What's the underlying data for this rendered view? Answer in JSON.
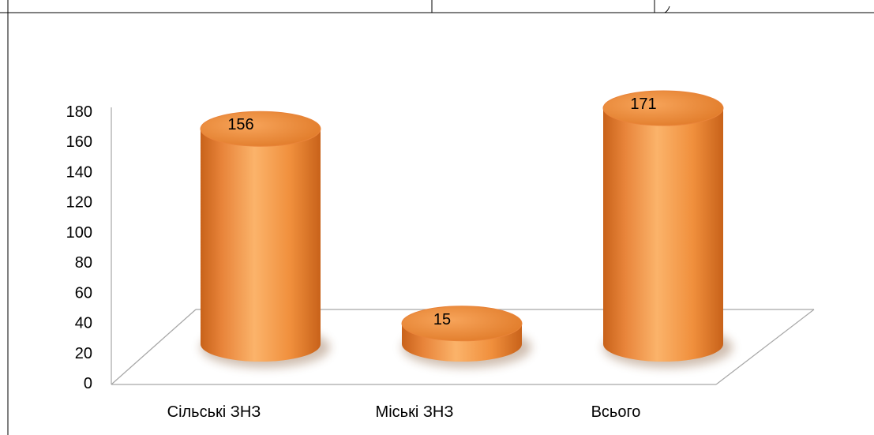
{
  "chart_data": {
    "type": "bar",
    "style": "3d-cylinder",
    "title": "",
    "xlabel": "",
    "ylabel": "",
    "categories": [
      "Сільські ЗНЗ",
      "Міські ЗНЗ",
      "Всього"
    ],
    "values": [
      156,
      15,
      171
    ],
    "data_labels": [
      "156",
      "15",
      "171"
    ],
    "ylim": [
      0,
      180
    ],
    "yticks": [
      "0",
      "20",
      "40",
      "60",
      "80",
      "100",
      "120",
      "140",
      "160",
      "180"
    ],
    "grid": false,
    "legend": "none",
    "colors": {
      "bar_light": "#fbb36a",
      "bar_mid": "#f59a42",
      "bar_dark": "#c8621a",
      "cap": "#f08a33",
      "axis": "#a6a6a6",
      "frame": "#000000"
    }
  }
}
